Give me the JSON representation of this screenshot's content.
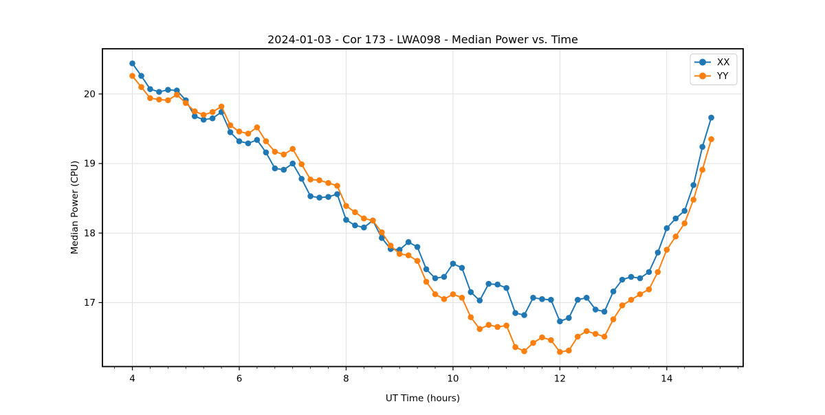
{
  "figure": {
    "title": "2024-01-03 - Cor 173 - LWA098 - Median Power vs. Time",
    "xlabel": "UT Time (hours)",
    "ylabel": "Median Power (CPU)",
    "background_color": "#ffffff",
    "spine_color": "#000000",
    "grid_color": "#e0e0e0"
  },
  "legend": {
    "position": "upper right",
    "entries": [
      {
        "label": "XX",
        "color": "#1f77b4"
      },
      {
        "label": "YY",
        "color": "#ff7f0e"
      }
    ]
  },
  "chart_data": {
    "type": "line",
    "title": "2024-01-03 - Cor 173 - LWA098 - Median Power vs. Time",
    "xlabel": "UT Time (hours)",
    "ylabel": "Median Power (CPU)",
    "grid": true,
    "legend_position": "upper right",
    "marker": "circle",
    "xlim": [
      3.44,
      15.43
    ],
    "ylim": [
      16.08,
      20.65
    ],
    "xticks": [
      4,
      6,
      8,
      10,
      12,
      14
    ],
    "yticks": [
      17,
      18,
      19,
      20
    ],
    "x_minor_tick_step": 0.333,
    "x": [
      4.0,
      4.167,
      4.333,
      4.5,
      4.667,
      4.833,
      5.0,
      5.167,
      5.333,
      5.5,
      5.667,
      5.833,
      6.0,
      6.167,
      6.333,
      6.5,
      6.667,
      6.833,
      7.0,
      7.167,
      7.333,
      7.5,
      7.667,
      7.833,
      8.0,
      8.167,
      8.333,
      8.5,
      8.667,
      8.833,
      9.0,
      9.167,
      9.333,
      9.5,
      9.667,
      9.833,
      10.0,
      10.167,
      10.333,
      10.5,
      10.667,
      10.833,
      11.0,
      11.167,
      11.333,
      11.5,
      11.667,
      11.833,
      12.0,
      12.167,
      12.333,
      12.5,
      12.667,
      12.833,
      13.0,
      13.167,
      13.333,
      13.5,
      13.667,
      13.833,
      14.0,
      14.167,
      14.333,
      14.5,
      14.667,
      14.833
    ],
    "series": [
      {
        "name": "XX",
        "color": "#1f77b4",
        "values": [
          20.44,
          20.26,
          20.07,
          20.03,
          20.06,
          20.05,
          19.91,
          19.68,
          19.63,
          19.65,
          19.74,
          19.45,
          19.32,
          19.29,
          19.34,
          19.16,
          18.93,
          18.91,
          19.0,
          18.78,
          18.53,
          18.51,
          18.52,
          18.56,
          18.19,
          18.11,
          18.08,
          18.18,
          17.93,
          17.77,
          17.76,
          17.87,
          17.8,
          17.48,
          17.35,
          17.37,
          17.56,
          17.5,
          17.15,
          17.03,
          17.27,
          17.26,
          17.21,
          16.85,
          16.82,
          17.07,
          17.05,
          17.04,
          16.73,
          16.78,
          17.04,
          17.07,
          16.9,
          16.87,
          17.16,
          17.33,
          17.37,
          17.35,
          17.44,
          17.72,
          18.07,
          18.21,
          18.32,
          18.69,
          19.24,
          19.66
        ]
      },
      {
        "name": "YY",
        "color": "#ff7f0e",
        "values": [
          20.26,
          20.1,
          19.94,
          19.92,
          19.91,
          19.99,
          19.87,
          19.75,
          19.7,
          19.74,
          19.82,
          19.55,
          19.46,
          19.43,
          19.52,
          19.32,
          19.17,
          19.13,
          19.21,
          18.99,
          18.77,
          18.76,
          18.72,
          18.68,
          18.39,
          18.3,
          18.21,
          18.18,
          18.01,
          17.82,
          17.7,
          17.68,
          17.6,
          17.3,
          17.12,
          17.05,
          17.12,
          17.07,
          16.79,
          16.62,
          16.68,
          16.65,
          16.67,
          16.36,
          16.3,
          16.42,
          16.5,
          16.46,
          16.29,
          16.31,
          16.51,
          16.59,
          16.55,
          16.51,
          16.76,
          16.96,
          17.04,
          17.12,
          17.19,
          17.44,
          17.76,
          17.95,
          18.14,
          18.48,
          18.91,
          19.35
        ]
      }
    ]
  }
}
